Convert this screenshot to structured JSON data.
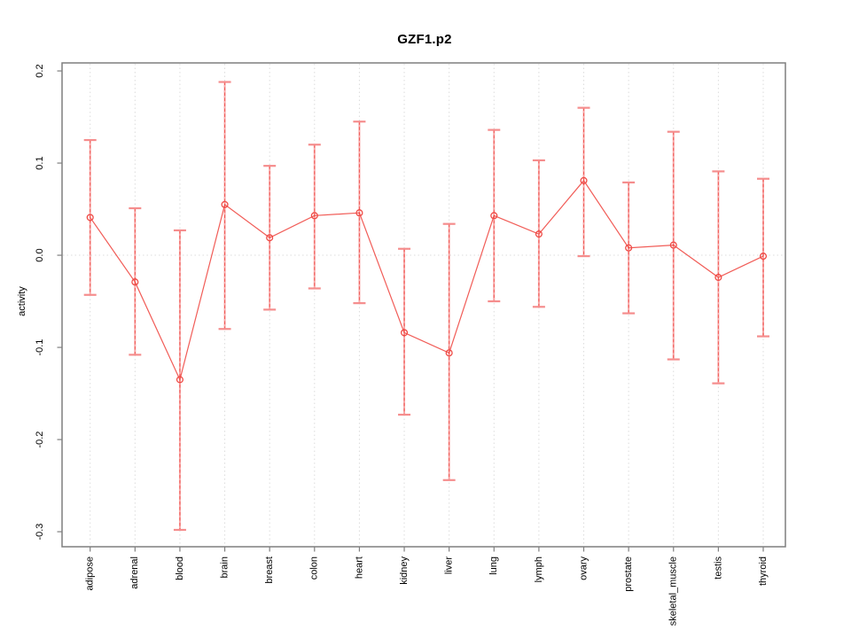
{
  "chart_data": {
    "type": "scatter",
    "error_bars": true,
    "title": "GZF1.p2",
    "xlabel": "",
    "ylabel": "activity",
    "categories": [
      "adipose",
      "adrenal",
      "blood",
      "brain",
      "breast",
      "colon",
      "heart",
      "kidney",
      "liver",
      "lung",
      "lymph",
      "ovary",
      "prostate",
      "skeletal_muscle",
      "testis",
      "thyroid"
    ],
    "series": [
      {
        "name": "activity",
        "values": [
          0.041,
          -0.029,
          -0.135,
          0.055,
          0.019,
          0.043,
          0.046,
          -0.084,
          -0.106,
          0.043,
          0.023,
          0.081,
          0.008,
          0.011,
          -0.024,
          -0.001
        ]
      },
      {
        "name": "ci_upper",
        "values": [
          0.125,
          0.051,
          0.027,
          0.188,
          0.097,
          0.12,
          0.145,
          0.007,
          0.034,
          0.136,
          0.103,
          0.16,
          0.079,
          0.134,
          0.091,
          0.083
        ]
      },
      {
        "name": "ci_lower",
        "values": [
          -0.043,
          -0.108,
          -0.298,
          -0.08,
          -0.059,
          -0.036,
          -0.052,
          -0.173,
          -0.244,
          -0.05,
          -0.056,
          -0.001,
          -0.063,
          -0.113,
          -0.139,
          -0.088
        ]
      }
    ],
    "yticks": [
      0.2,
      0.1,
      0.0,
      -0.1,
      -0.2,
      -0.3
    ],
    "ylim": [
      -0.316,
      0.209
    ],
    "grid": "dotted vertical line at each category, dotted horizontal line at y=0",
    "legend": "none",
    "marker": "open-circle",
    "colors": {
      "point": "#ef4a45",
      "bar": "#f8a9a9",
      "cap": "#f58d8d",
      "grid": "#dcdcdc",
      "frame": "#7f7f7f",
      "text": "#000000"
    }
  }
}
